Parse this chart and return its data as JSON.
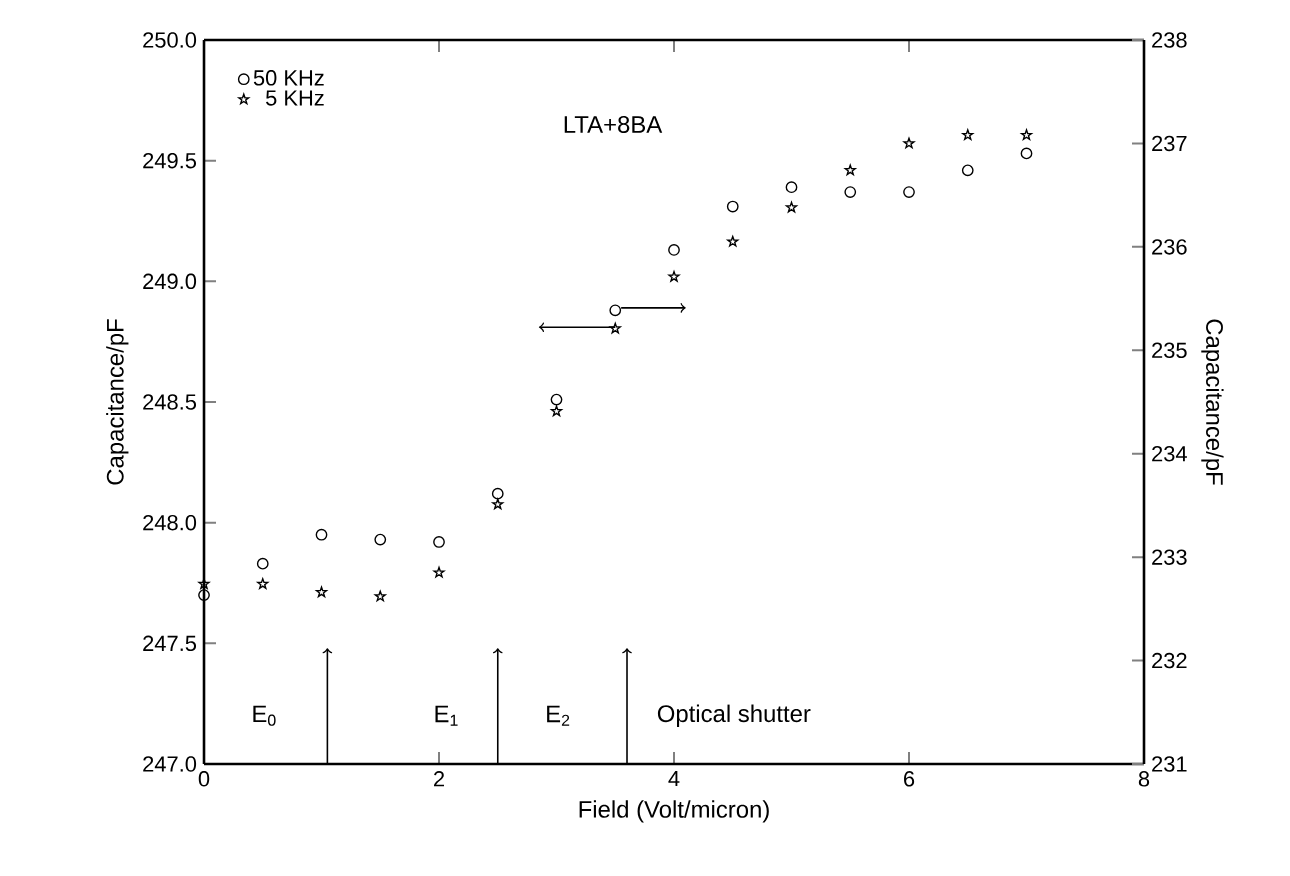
{
  "chart_data": {
    "type": "scatter",
    "xlabel": "Field  (Volt/micron)",
    "ylabel": "Capacitance/pF",
    "y2label": "Capacitance/pF",
    "xlim": [
      0,
      8
    ],
    "xticks": [
      0,
      2,
      4,
      6,
      8
    ],
    "ylim": [
      247.0,
      250.0
    ],
    "yticks": [
      {
        "value": 247.0,
        "label": "247.0"
      },
      {
        "value": 247.5,
        "label": "247.5"
      },
      {
        "value": 248.0,
        "label": "248.0"
      },
      {
        "value": 248.5,
        "label": "248.5"
      },
      {
        "value": 249.0,
        "label": "249.0"
      },
      {
        "value": 249.5,
        "label": "249.5"
      },
      {
        "value": 250.0,
        "label": "250.0"
      }
    ],
    "y2lim": [
      231,
      238
    ],
    "y2ticks": [
      231,
      232,
      233,
      234,
      235,
      236,
      237,
      238
    ],
    "legend": "top left",
    "grid": false,
    "series": [
      {
        "name": "50  KHz",
        "color": "#000000",
        "marker": "circle",
        "x": [
          0,
          0.5,
          1,
          1.5,
          2,
          2.5,
          3,
          3.5,
          4,
          4.5,
          5,
          5.5,
          6,
          6.5,
          7
        ],
        "values": [
          247.7,
          247.83,
          247.95,
          247.93,
          247.92,
          248.12,
          248.51,
          248.88,
          249.13,
          249.31,
          249.39,
          249.37,
          249.37,
          249.46,
          249.53
        ]
      },
      {
        "name": "5  KHz",
        "color": "#000000",
        "marker": "star",
        "axis": "y2",
        "x": [
          0,
          0.5,
          1,
          1.5,
          2,
          2.5,
          3,
          3.5,
          4,
          4.5,
          5,
          5.5,
          6,
          6.5,
          7
        ],
        "values": [
          232.74,
          232.74,
          232.66,
          232.62,
          232.85,
          233.51,
          234.41,
          235.21,
          235.71,
          236.05,
          236.38,
          236.74,
          237.0,
          237.08,
          237.08
        ]
      }
    ],
    "annotations": [
      "LTA+8BA",
      "E$_{0}$",
      "E$_{1}$",
      "E$_{2}$",
      "Optical  shutter"
    ]
  }
}
